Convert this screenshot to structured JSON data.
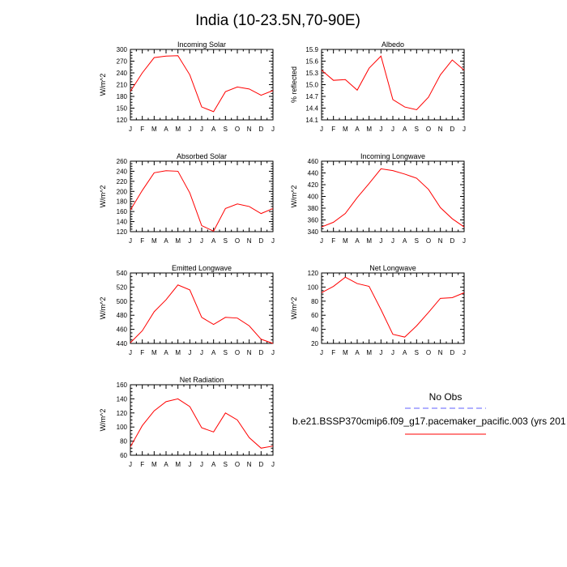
{
  "title": "India (10-23.5N,70-90E)",
  "legend": {
    "obs_label": "No Obs",
    "obs_color": "#8080ff",
    "model_label": "b.e21.BSSP370cmip6.f09_g17.pacemaker_pacific.003 (yrs 201",
    "model_color": "#ff0000"
  },
  "chart_data": [
    {
      "type": "line",
      "title": "Incoming Solar",
      "ylabel": "W/m^2",
      "x": [
        "J",
        "F",
        "M",
        "A",
        "M",
        "J",
        "J",
        "A",
        "S",
        "O",
        "N",
        "D",
        "J"
      ],
      "ylim": [
        120,
        300
      ],
      "yticks": [
        120,
        150,
        180,
        210,
        240,
        270,
        300
      ],
      "series": [
        {
          "values": [
            193,
            240,
            279,
            283,
            284,
            235,
            153,
            141,
            192,
            204,
            199,
            183,
            195
          ]
        }
      ]
    },
    {
      "type": "line",
      "title": "Albedo",
      "ylabel": "% reflected",
      "x": [
        "J",
        "F",
        "M",
        "A",
        "M",
        "J",
        "J",
        "A",
        "S",
        "O",
        "N",
        "D",
        "J"
      ],
      "ylim": [
        14.1,
        15.9
      ],
      "yticks": [
        14.1,
        14.4,
        14.7,
        15.0,
        15.3,
        15.6,
        15.9
      ],
      "series": [
        {
          "values": [
            15.37,
            15.11,
            15.13,
            14.86,
            15.42,
            15.73,
            14.62,
            14.43,
            14.36,
            14.68,
            15.25,
            15.63,
            15.37
          ]
        }
      ]
    },
    {
      "type": "line",
      "title": "Absorbed Solar",
      "ylabel": "W/m^2",
      "x": [
        "J",
        "F",
        "M",
        "A",
        "M",
        "J",
        "J",
        "A",
        "S",
        "O",
        "N",
        "D",
        "J"
      ],
      "ylim": [
        120,
        260
      ],
      "yticks": [
        120,
        140,
        160,
        180,
        200,
        220,
        240,
        260
      ],
      "series": [
        {
          "values": [
            163,
            202,
            237,
            241,
            240,
            197,
            132,
            121,
            166,
            175,
            170,
            156,
            166
          ]
        }
      ]
    },
    {
      "type": "line",
      "title": "Incoming Longwave",
      "ylabel": "W/m^2",
      "x": [
        "J",
        "F",
        "M",
        "A",
        "M",
        "J",
        "J",
        "A",
        "S",
        "O",
        "N",
        "D",
        "J"
      ],
      "ylim": [
        340,
        460
      ],
      "yticks": [
        340,
        360,
        380,
        400,
        420,
        440,
        460
      ],
      "series": [
        {
          "values": [
            348,
            356,
            371,
            398,
            422,
            447,
            444,
            438,
            431,
            412,
            381,
            362,
            348
          ]
        }
      ]
    },
    {
      "type": "line",
      "title": "Emitted Longwave",
      "ylabel": "W/m^2",
      "x": [
        "J",
        "F",
        "M",
        "A",
        "M",
        "J",
        "J",
        "A",
        "S",
        "O",
        "N",
        "D",
        "J"
      ],
      "ylim": [
        440,
        540
      ],
      "yticks": [
        440,
        460,
        480,
        500,
        520,
        540
      ],
      "series": [
        {
          "values": [
            441,
            458,
            485,
            502,
            523,
            516,
            477,
            467,
            477,
            476,
            465,
            446,
            440
          ]
        }
      ]
    },
    {
      "type": "line",
      "title": "Net Longwave",
      "ylabel": "W/m^2",
      "x": [
        "J",
        "F",
        "M",
        "A",
        "M",
        "J",
        "J",
        "A",
        "S",
        "O",
        "N",
        "D",
        "J"
      ],
      "ylim": [
        20,
        120
      ],
      "yticks": [
        20,
        40,
        60,
        80,
        100,
        120
      ],
      "series": [
        {
          "values": [
            92,
            101,
            114,
            105,
            101,
            68,
            33,
            29,
            45,
            64,
            84,
            85,
            92
          ]
        }
      ]
    },
    {
      "type": "line",
      "title": "Net Radiation",
      "ylabel": "W/m^2",
      "x": [
        "J",
        "F",
        "M",
        "A",
        "M",
        "J",
        "J",
        "A",
        "S",
        "O",
        "N",
        "D",
        "J"
      ],
      "ylim": [
        60,
        160
      ],
      "yticks": [
        60,
        80,
        100,
        120,
        140,
        160
      ],
      "series": [
        {
          "values": [
            72,
            102,
            123,
            136,
            140,
            129,
            99,
            93,
            120,
            110,
            85,
            70,
            73
          ]
        }
      ]
    }
  ]
}
